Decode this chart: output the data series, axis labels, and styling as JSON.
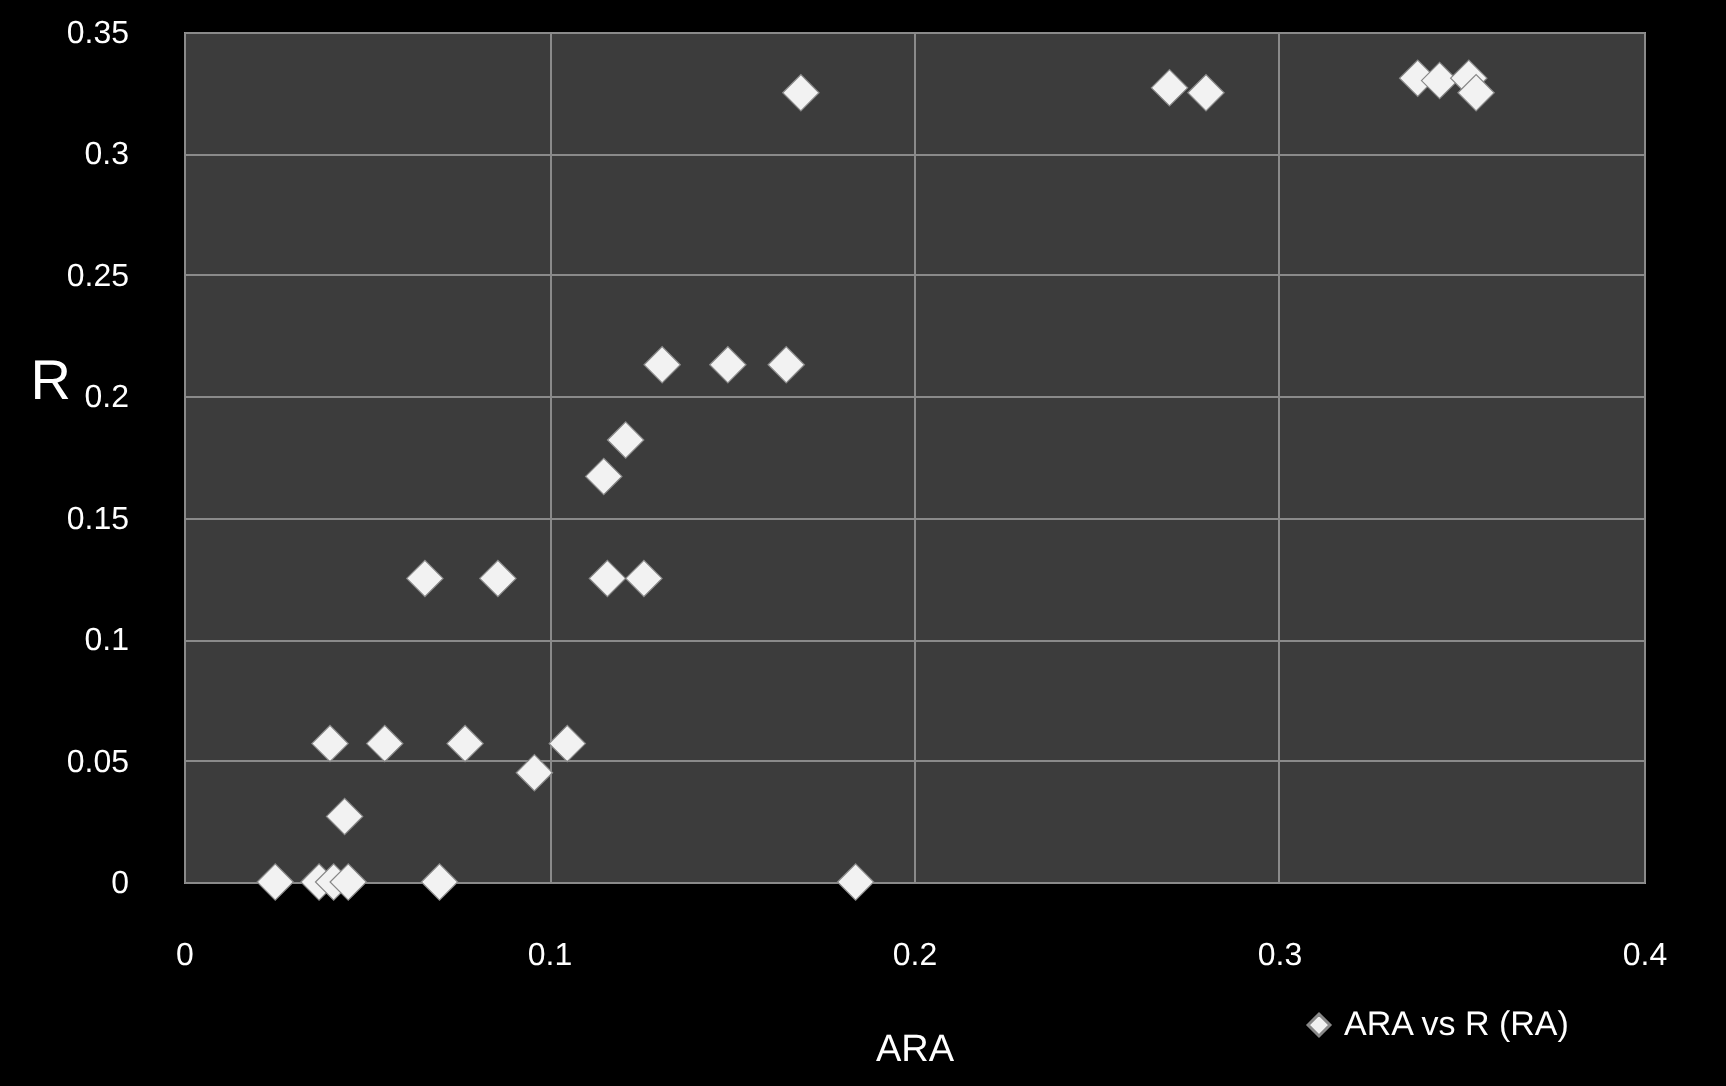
{
  "chart_data": {
    "type": "scatter",
    "xlabel": "ARA",
    "ylabel": "R",
    "xlim": [
      0,
      0.4
    ],
    "ylim": [
      0,
      0.35
    ],
    "xticks": [
      {
        "value": 0,
        "label": "0"
      },
      0.1,
      0.2,
      0.3,
      0.4
    ],
    "yticks": [
      {
        "value": 0,
        "label": "0"
      },
      0.05,
      {
        "value": 0.1,
        "label": "0.1"
      },
      0.15,
      {
        "value": 0.2,
        "label": "0.2"
      },
      0.25,
      {
        "value": 0.3,
        "label": "0.3"
      },
      0.35
    ],
    "grid": true,
    "legend": "bottom right",
    "marker": "diamond",
    "series": [
      {
        "name": "ARA vs R (RA)",
        "color": "#f2f2f2",
        "x": [
          0.025,
          0.037,
          0.041,
          0.045,
          0.07,
          0.184,
          0.044,
          0.04,
          0.055,
          0.077,
          0.105,
          0.096,
          0.066,
          0.086,
          0.116,
          0.126,
          0.115,
          0.121,
          0.131,
          0.149,
          0.165,
          0.169,
          0.27,
          0.28,
          0.338,
          0.344,
          0.352,
          0.354
        ],
        "values": [
          0,
          0,
          0,
          0,
          0,
          0,
          0.027,
          0.057,
          0.057,
          0.057,
          0.057,
          0.045,
          0.125,
          0.125,
          0.125,
          0.125,
          0.167,
          0.182,
          0.213,
          0.213,
          0.213,
          0.325,
          0.327,
          0.325,
          0.331,
          0.33,
          0.331,
          0.325
        ]
      }
    ]
  }
}
